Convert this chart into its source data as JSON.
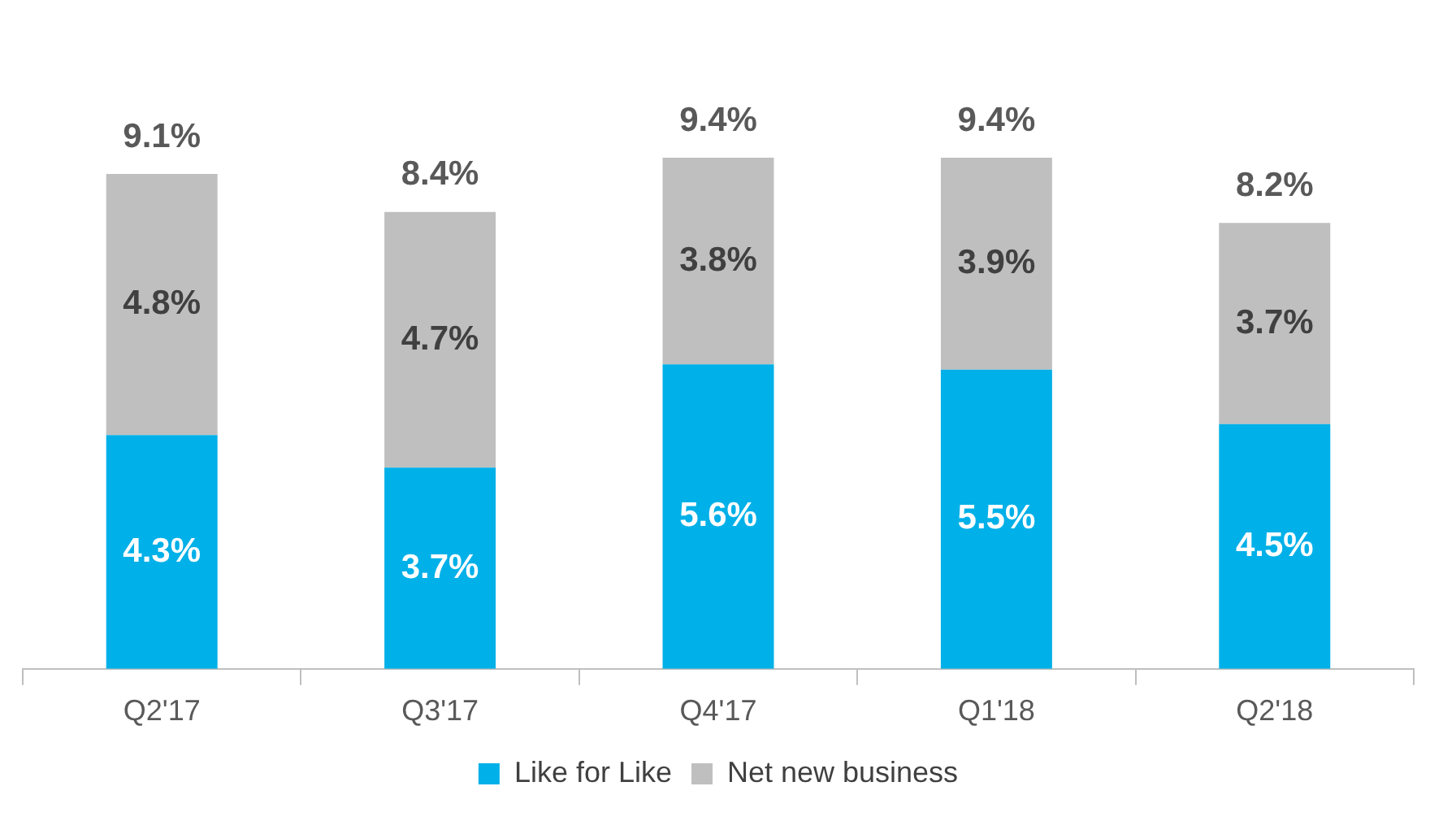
{
  "chart_data": {
    "type": "bar",
    "stacked": true,
    "categories": [
      "Q2'17",
      "Q3'17",
      "Q4'17",
      "Q1'18",
      "Q2'18"
    ],
    "series": [
      {
        "name": "Like for Like",
        "color": "#00b0e8",
        "values": [
          4.3,
          3.7,
          5.6,
          5.5,
          4.5
        ],
        "value_labels": [
          "4.3%",
          "3.7%",
          "5.6%",
          "5.5%",
          "4.5%"
        ]
      },
      {
        "name": "Net new business",
        "color": "#bfbfbf",
        "values": [
          4.8,
          4.7,
          3.8,
          3.9,
          3.7
        ],
        "value_labels": [
          "4.8%",
          "4.7%",
          "3.8%",
          "3.9%",
          "3.7%"
        ]
      }
    ],
    "totals": [
      "9.1%",
      "8.4%",
      "9.4%",
      "9.4%",
      "8.2%"
    ],
    "legend": "bottom",
    "grid": false
  }
}
